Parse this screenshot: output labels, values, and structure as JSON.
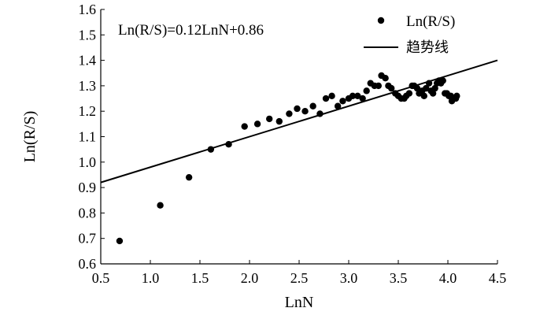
{
  "chart_data": {
    "type": "scatter",
    "xlabel": "LnN",
    "ylabel": "Ln(R/S)",
    "xlim": [
      0.5,
      4.5
    ],
    "ylim": [
      0.6,
      1.6
    ],
    "xticks": [
      0.5,
      1.0,
      1.5,
      2.0,
      2.5,
      3.0,
      3.5,
      4.0,
      4.5
    ],
    "xtick_labels": [
      "0.5",
      "1.0",
      "1.5",
      "2.0",
      "2.5",
      "3.0",
      "3.5",
      "4.0",
      "4.5"
    ],
    "yticks": [
      0.6,
      0.7,
      0.8,
      0.9,
      1.0,
      1.1,
      1.2,
      1.3,
      1.4,
      1.5,
      1.6
    ],
    "ytick_labels": [
      "0.6",
      "0.7",
      "0.8",
      "0.9",
      "1.0",
      "1.1",
      "1.2",
      "1.3",
      "1.4",
      "1.5",
      "1.6"
    ],
    "annotation": "Ln(R/S)=0.12LnN+0.86",
    "legend_position": "top-right",
    "grid": false,
    "series": [
      {
        "name": "Ln(R/S)",
        "kind": "scatter",
        "color": "#000000",
        "points": [
          [
            0.69,
            0.69
          ],
          [
            1.1,
            0.83
          ],
          [
            1.39,
            0.94
          ],
          [
            1.61,
            1.05
          ],
          [
            1.79,
            1.07
          ],
          [
            1.95,
            1.14
          ],
          [
            2.08,
            1.15
          ],
          [
            2.2,
            1.17
          ],
          [
            2.3,
            1.16
          ],
          [
            2.4,
            1.19
          ],
          [
            2.48,
            1.21
          ],
          [
            2.56,
            1.2
          ],
          [
            2.64,
            1.22
          ],
          [
            2.71,
            1.19
          ],
          [
            2.77,
            1.25
          ],
          [
            2.83,
            1.26
          ],
          [
            2.89,
            1.22
          ],
          [
            2.94,
            1.24
          ],
          [
            3.0,
            1.25
          ],
          [
            3.04,
            1.26
          ],
          [
            3.09,
            1.26
          ],
          [
            3.14,
            1.25
          ],
          [
            3.18,
            1.28
          ],
          [
            3.22,
            1.31
          ],
          [
            3.26,
            1.3
          ],
          [
            3.3,
            1.3
          ],
          [
            3.33,
            1.34
          ],
          [
            3.37,
            1.33
          ],
          [
            3.4,
            1.3
          ],
          [
            3.43,
            1.29
          ],
          [
            3.47,
            1.27
          ],
          [
            3.5,
            1.26
          ],
          [
            3.53,
            1.25
          ],
          [
            3.56,
            1.25
          ],
          [
            3.58,
            1.26
          ],
          [
            3.61,
            1.27
          ],
          [
            3.64,
            1.3
          ],
          [
            3.66,
            1.3
          ],
          [
            3.69,
            1.29
          ],
          [
            3.71,
            1.27
          ],
          [
            3.74,
            1.28
          ],
          [
            3.76,
            1.26
          ],
          [
            3.78,
            1.29
          ],
          [
            3.81,
            1.31
          ],
          [
            3.83,
            1.28
          ],
          [
            3.85,
            1.27
          ],
          [
            3.87,
            1.29
          ],
          [
            3.89,
            1.31
          ],
          [
            3.91,
            1.32
          ],
          [
            3.93,
            1.31
          ],
          [
            3.95,
            1.32
          ],
          [
            3.97,
            1.27
          ],
          [
            3.99,
            1.27
          ],
          [
            4.01,
            1.26
          ],
          [
            4.03,
            1.26
          ],
          [
            4.04,
            1.24
          ],
          [
            4.06,
            1.25
          ],
          [
            4.08,
            1.25
          ],
          [
            4.09,
            1.26
          ]
        ]
      },
      {
        "name": "趋势线",
        "kind": "line",
        "color": "#000000",
        "slope": 0.12,
        "intercept": 0.86
      }
    ]
  }
}
